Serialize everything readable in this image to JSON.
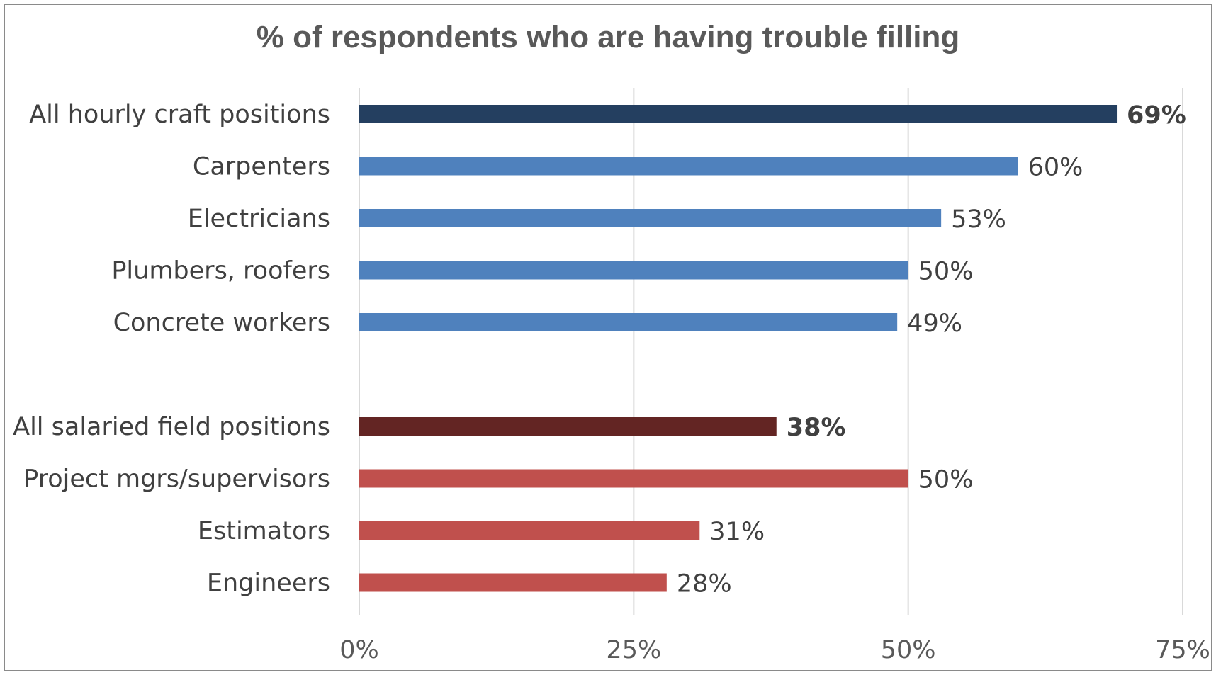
{
  "chart_data": {
    "type": "bar",
    "orientation": "horizontal",
    "title": "% of respondents who are having trouble filling",
    "xlabel": "",
    "ylabel": "",
    "xlim": [
      0,
      75
    ],
    "x_ticks": [
      "0%",
      "25%",
      "50%",
      "75%"
    ],
    "x_tick_values": [
      0,
      25,
      50,
      75
    ],
    "grid": true,
    "legend": "none",
    "categories": [
      "All hourly craft positions",
      "Carpenters",
      "Electricians",
      "Plumbers, roofers",
      "Concrete workers",
      "",
      "All salaried field positions",
      "Project mgrs/supervisors",
      "Estimators",
      "Engineers"
    ],
    "values": [
      69,
      60,
      53,
      50,
      49,
      null,
      38,
      50,
      31,
      28
    ],
    "data_labels": [
      "69%",
      "60%",
      "53%",
      "50%",
      "49%",
      "",
      "38%",
      "50%",
      "31%",
      "28%"
    ],
    "bold_labels": [
      true,
      false,
      false,
      false,
      false,
      false,
      true,
      false,
      false,
      false
    ],
    "colors": [
      "#243f60",
      "#4f81bd",
      "#4f81bd",
      "#4f81bd",
      "#4f81bd",
      "",
      "#632523",
      "#c0504d",
      "#c0504d",
      "#c0504d"
    ]
  }
}
